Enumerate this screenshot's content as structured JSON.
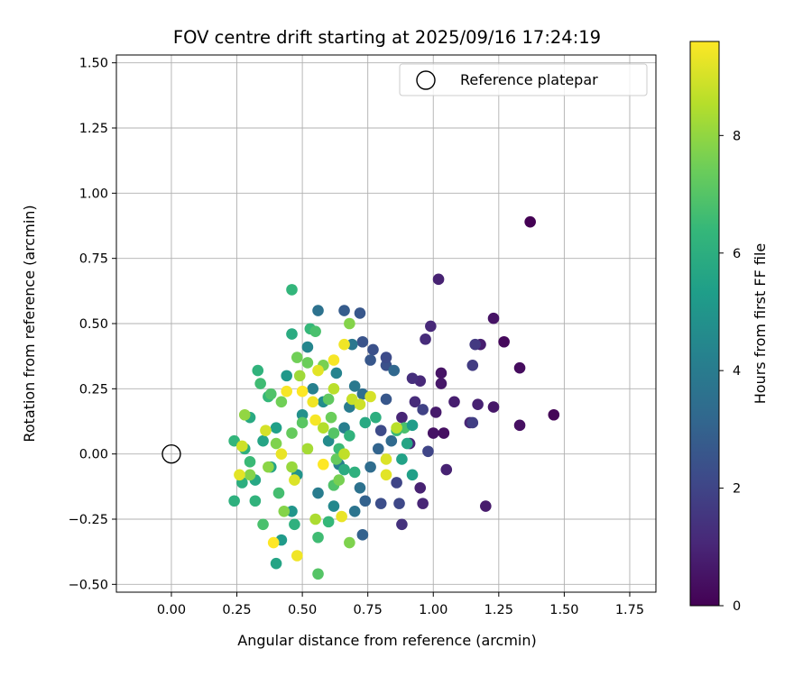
{
  "chart_data": {
    "type": "scatter",
    "title": "FOV centre drift starting at 2025/09/16 17:24:19",
    "xlabel": "Angular distance from reference (arcmin)",
    "ylabel": "Rotation from reference (arcmin)",
    "xlim": [
      -0.21,
      1.85
    ],
    "ylim": [
      -0.53,
      1.53
    ],
    "xticks": [
      0.0,
      0.25,
      0.5,
      0.75,
      1.0,
      1.25,
      1.5,
      1.75
    ],
    "xtick_labels": [
      "0.00",
      "0.25",
      "0.50",
      "0.75",
      "1.00",
      "1.25",
      "1.50",
      "1.75"
    ],
    "yticks": [
      -0.5,
      -0.25,
      0.0,
      0.25,
      0.5,
      0.75,
      1.0,
      1.25,
      1.5
    ],
    "ytick_labels": [
      "−0.50",
      "−0.25",
      "0.00",
      "0.25",
      "0.50",
      "0.75",
      "1.00",
      "1.25",
      "1.50"
    ],
    "grid": true,
    "legend": {
      "position": "top-right",
      "entries": [
        "Reference platepar"
      ]
    },
    "reference_point": {
      "x": 0.0,
      "y": 0.0,
      "label": "Reference platepar"
    },
    "colorbar": {
      "label": "Hours from first FF file",
      "min": 0,
      "max": 9.6,
      "ticks": [
        0,
        2,
        4,
        6,
        8
      ],
      "tick_labels": [
        "0",
        "2",
        "4",
        "6",
        "8"
      ],
      "colormap": "viridis",
      "stops": [
        "#440154",
        "#482878",
        "#3e4989",
        "#31688e",
        "#26828e",
        "#1f9e89",
        "#35b779",
        "#6ece58",
        "#b5de2b",
        "#fde725"
      ]
    },
    "points": [
      {
        "x": 1.37,
        "y": 0.89,
        "h": 0.0
      },
      {
        "x": 1.46,
        "y": 0.15,
        "h": 0.1
      },
      {
        "x": 1.27,
        "y": 0.43,
        "h": 0.2
      },
      {
        "x": 1.33,
        "y": 0.33,
        "h": 0.3
      },
      {
        "x": 1.33,
        "y": 0.11,
        "h": 0.4
      },
      {
        "x": 1.23,
        "y": 0.52,
        "h": 0.5
      },
      {
        "x": 1.23,
        "y": 0.18,
        "h": 0.6
      },
      {
        "x": 1.2,
        "y": -0.2,
        "h": 0.7
      },
      {
        "x": 1.18,
        "y": 0.42,
        "h": 0.8
      },
      {
        "x": 1.17,
        "y": 0.19,
        "h": 0.9
      },
      {
        "x": 1.14,
        "y": 0.12,
        "h": 1.0
      },
      {
        "x": 1.02,
        "y": 0.67,
        "h": 0.9
      },
      {
        "x": 1.08,
        "y": 0.2,
        "h": 0.8
      },
      {
        "x": 1.05,
        "y": -0.06,
        "h": 0.9
      },
      {
        "x": 1.03,
        "y": 0.31,
        "h": 0.5
      },
      {
        "x": 1.03,
        "y": 0.27,
        "h": 0.6
      },
      {
        "x": 1.01,
        "y": 0.16,
        "h": 0.7
      },
      {
        "x": 1.0,
        "y": 0.08,
        "h": 0.5
      },
      {
        "x": 1.04,
        "y": 0.08,
        "h": 0.4
      },
      {
        "x": 0.99,
        "y": 0.49,
        "h": 1.1
      },
      {
        "x": 0.97,
        "y": 0.44,
        "h": 1.2
      },
      {
        "x": 0.96,
        "y": -0.19,
        "h": 1.0
      },
      {
        "x": 0.95,
        "y": -0.13,
        "h": 0.9
      },
      {
        "x": 0.95,
        "y": 0.28,
        "h": 1.1
      },
      {
        "x": 0.93,
        "y": 0.2,
        "h": 1.2
      },
      {
        "x": 0.92,
        "y": 0.29,
        "h": 1.3
      },
      {
        "x": 0.91,
        "y": 0.04,
        "h": 1.0
      },
      {
        "x": 0.88,
        "y": 0.14,
        "h": 1.0
      },
      {
        "x": 0.88,
        "y": -0.27,
        "h": 1.4
      },
      {
        "x": 1.16,
        "y": 0.42,
        "h": 1.6
      },
      {
        "x": 1.15,
        "y": 0.34,
        "h": 1.7
      },
      {
        "x": 1.15,
        "y": 0.12,
        "h": 1.8
      },
      {
        "x": 0.96,
        "y": 0.17,
        "h": 1.9
      },
      {
        "x": 0.98,
        "y": 0.01,
        "h": 2.0
      },
      {
        "x": 0.87,
        "y": -0.19,
        "h": 2.1
      },
      {
        "x": 0.86,
        "y": -0.11,
        "h": 2.0
      },
      {
        "x": 0.82,
        "y": 0.34,
        "h": 2.4
      },
      {
        "x": 0.82,
        "y": 0.37,
        "h": 2.2
      },
      {
        "x": 0.82,
        "y": 0.21,
        "h": 2.6
      },
      {
        "x": 0.8,
        "y": 0.09,
        "h": 2.2
      },
      {
        "x": 0.8,
        "y": -0.19,
        "h": 2.3
      },
      {
        "x": 0.77,
        "y": 0.4,
        "h": 2.4
      },
      {
        "x": 0.76,
        "y": 0.36,
        "h": 2.6
      },
      {
        "x": 0.73,
        "y": 0.43,
        "h": 2.5
      },
      {
        "x": 0.72,
        "y": 0.54,
        "h": 2.6
      },
      {
        "x": 0.66,
        "y": 0.55,
        "h": 2.8
      },
      {
        "x": 0.73,
        "y": -0.31,
        "h": 3.0
      },
      {
        "x": 0.74,
        "y": -0.18,
        "h": 3.0
      },
      {
        "x": 0.85,
        "y": 0.32,
        "h": 3.2
      },
      {
        "x": 0.84,
        "y": 0.05,
        "h": 3.3
      },
      {
        "x": 0.79,
        "y": 0.02,
        "h": 3.1
      },
      {
        "x": 0.76,
        "y": -0.05,
        "h": 3.4
      },
      {
        "x": 0.73,
        "y": 0.23,
        "h": 3.5
      },
      {
        "x": 0.72,
        "y": -0.13,
        "h": 3.6
      },
      {
        "x": 0.7,
        "y": -0.22,
        "h": 3.7
      },
      {
        "x": 0.7,
        "y": 0.26,
        "h": 3.9
      },
      {
        "x": 0.69,
        "y": 0.42,
        "h": 3.8
      },
      {
        "x": 0.68,
        "y": 0.18,
        "h": 4.0
      },
      {
        "x": 0.66,
        "y": 0.1,
        "h": 4.1
      },
      {
        "x": 0.64,
        "y": -0.04,
        "h": 4.2
      },
      {
        "x": 0.63,
        "y": 0.31,
        "h": 4.3
      },
      {
        "x": 0.62,
        "y": -0.2,
        "h": 4.5
      },
      {
        "x": 0.6,
        "y": 0.05,
        "h": 4.6
      },
      {
        "x": 0.58,
        "y": 0.2,
        "h": 4.7
      },
      {
        "x": 0.56,
        "y": 0.55,
        "h": 3.6
      },
      {
        "x": 0.56,
        "y": -0.15,
        "h": 4.0
      },
      {
        "x": 0.54,
        "y": 0.25,
        "h": 4.2
      },
      {
        "x": 0.52,
        "y": 0.41,
        "h": 4.4
      },
      {
        "x": 0.5,
        "y": 0.15,
        "h": 4.8
      },
      {
        "x": 0.48,
        "y": -0.08,
        "h": 4.9
      },
      {
        "x": 0.46,
        "y": -0.22,
        "h": 5.0
      },
      {
        "x": 0.44,
        "y": 0.3,
        "h": 5.1
      },
      {
        "x": 0.42,
        "y": -0.33,
        "h": 5.2
      },
      {
        "x": 0.4,
        "y": 0.1,
        "h": 5.4
      },
      {
        "x": 0.38,
        "y": -0.05,
        "h": 5.5
      },
      {
        "x": 0.35,
        "y": 0.05,
        "h": 5.6
      },
      {
        "x": 0.32,
        "y": -0.1,
        "h": 5.7
      },
      {
        "x": 0.3,
        "y": 0.14,
        "h": 5.8
      },
      {
        "x": 0.27,
        "y": -0.11,
        "h": 6.0
      },
      {
        "x": 0.4,
        "y": -0.42,
        "h": 5.6
      },
      {
        "x": 0.46,
        "y": 0.63,
        "h": 6.3
      },
      {
        "x": 0.46,
        "y": 0.46,
        "h": 5.9
      },
      {
        "x": 0.53,
        "y": 0.48,
        "h": 6.4
      },
      {
        "x": 0.55,
        "y": 0.47,
        "h": 6.8
      },
      {
        "x": 0.24,
        "y": -0.18,
        "h": 6.1
      },
      {
        "x": 0.24,
        "y": 0.05,
        "h": 6.3
      },
      {
        "x": 0.33,
        "y": 0.32,
        "h": 6.2
      },
      {
        "x": 0.34,
        "y": 0.27,
        "h": 6.6
      },
      {
        "x": 0.37,
        "y": 0.22,
        "h": 6.4
      },
      {
        "x": 0.38,
        "y": 0.23,
        "h": 6.9
      },
      {
        "x": 0.3,
        "y": -0.03,
        "h": 6.5
      },
      {
        "x": 0.28,
        "y": 0.02,
        "h": 6.0
      },
      {
        "x": 0.32,
        "y": -0.18,
        "h": 6.2
      },
      {
        "x": 0.35,
        "y": -0.27,
        "h": 6.8
      },
      {
        "x": 0.41,
        "y": -0.15,
        "h": 6.7
      },
      {
        "x": 0.47,
        "y": -0.27,
        "h": 6.1
      },
      {
        "x": 0.56,
        "y": -0.32,
        "h": 6.6
      },
      {
        "x": 0.56,
        "y": -0.46,
        "h": 7.0
      },
      {
        "x": 0.6,
        "y": -0.26,
        "h": 6.4
      },
      {
        "x": 0.62,
        "y": -0.12,
        "h": 6.9
      },
      {
        "x": 0.64,
        "y": 0.02,
        "h": 6.5
      },
      {
        "x": 0.66,
        "y": -0.06,
        "h": 5.9
      },
      {
        "x": 0.68,
        "y": 0.07,
        "h": 6.2
      },
      {
        "x": 0.7,
        "y": -0.07,
        "h": 6.1
      },
      {
        "x": 0.74,
        "y": 0.12,
        "h": 5.8
      },
      {
        "x": 0.78,
        "y": 0.14,
        "h": 6.0
      },
      {
        "x": 0.89,
        "y": 0.1,
        "h": 6.8
      },
      {
        "x": 0.9,
        "y": 0.04,
        "h": 5.6
      },
      {
        "x": 0.92,
        "y": -0.08,
        "h": 5.4
      },
      {
        "x": 0.92,
        "y": 0.11,
        "h": 5.3
      },
      {
        "x": 0.88,
        "y": -0.02,
        "h": 5.5
      },
      {
        "x": 0.86,
        "y": 0.09,
        "h": 6.5
      },
      {
        "x": 0.68,
        "y": 0.5,
        "h": 7.8
      },
      {
        "x": 0.68,
        "y": -0.34,
        "h": 7.7
      },
      {
        "x": 0.52,
        "y": 0.35,
        "h": 7.4
      },
      {
        "x": 0.48,
        "y": 0.37,
        "h": 7.5
      },
      {
        "x": 0.58,
        "y": 0.34,
        "h": 7.6
      },
      {
        "x": 0.6,
        "y": 0.21,
        "h": 7.2
      },
      {
        "x": 0.61,
        "y": 0.14,
        "h": 7.4
      },
      {
        "x": 0.62,
        "y": 0.08,
        "h": 7.0
      },
      {
        "x": 0.63,
        "y": -0.02,
        "h": 7.3
      },
      {
        "x": 0.64,
        "y": -0.1,
        "h": 7.6
      },
      {
        "x": 0.5,
        "y": 0.12,
        "h": 7.1
      },
      {
        "x": 0.46,
        "y": 0.08,
        "h": 7.3
      },
      {
        "x": 0.42,
        "y": 0.2,
        "h": 7.5
      },
      {
        "x": 0.4,
        "y": 0.04,
        "h": 7.7
      },
      {
        "x": 0.37,
        "y": -0.05,
        "h": 7.9
      },
      {
        "x": 0.3,
        "y": -0.08,
        "h": 7.8
      },
      {
        "x": 0.28,
        "y": 0.15,
        "h": 8.0
      },
      {
        "x": 0.43,
        "y": -0.22,
        "h": 7.8
      },
      {
        "x": 0.46,
        "y": -0.05,
        "h": 8.1
      },
      {
        "x": 0.49,
        "y": 0.3,
        "h": 8.2
      },
      {
        "x": 0.52,
        "y": 0.02,
        "h": 8.3
      },
      {
        "x": 0.55,
        "y": -0.25,
        "h": 8.4
      },
      {
        "x": 0.58,
        "y": 0.1,
        "h": 8.5
      },
      {
        "x": 0.62,
        "y": 0.25,
        "h": 8.6
      },
      {
        "x": 0.66,
        "y": 0.0,
        "h": 8.7
      },
      {
        "x": 0.69,
        "y": 0.21,
        "h": 8.8
      },
      {
        "x": 0.72,
        "y": 0.19,
        "h": 8.9
      },
      {
        "x": 0.86,
        "y": 0.1,
        "h": 8.6
      },
      {
        "x": 0.76,
        "y": 0.22,
        "h": 9.0
      },
      {
        "x": 0.82,
        "y": -0.02,
        "h": 9.1
      },
      {
        "x": 0.82,
        "y": -0.08,
        "h": 9.2
      },
      {
        "x": 0.66,
        "y": 0.42,
        "h": 9.4
      },
      {
        "x": 0.65,
        "y": -0.24,
        "h": 9.3
      },
      {
        "x": 0.62,
        "y": 0.36,
        "h": 9.5
      },
      {
        "x": 0.56,
        "y": 0.32,
        "h": 9.2
      },
      {
        "x": 0.54,
        "y": 0.2,
        "h": 9.4
      },
      {
        "x": 0.5,
        "y": 0.24,
        "h": 9.6
      },
      {
        "x": 0.47,
        "y": -0.1,
        "h": 9.1
      },
      {
        "x": 0.44,
        "y": 0.24,
        "h": 9.5
      },
      {
        "x": 0.42,
        "y": 0.0,
        "h": 9.3
      },
      {
        "x": 0.39,
        "y": -0.34,
        "h": 9.6
      },
      {
        "x": 0.36,
        "y": 0.09,
        "h": 9.0
      },
      {
        "x": 0.26,
        "y": -0.08,
        "h": 9.2
      },
      {
        "x": 0.27,
        "y": 0.03,
        "h": 8.9
      },
      {
        "x": 0.48,
        "y": -0.39,
        "h": 9.4
      },
      {
        "x": 0.55,
        "y": 0.13,
        "h": 9.5
      },
      {
        "x": 0.58,
        "y": -0.04,
        "h": 9.6
      }
    ]
  }
}
